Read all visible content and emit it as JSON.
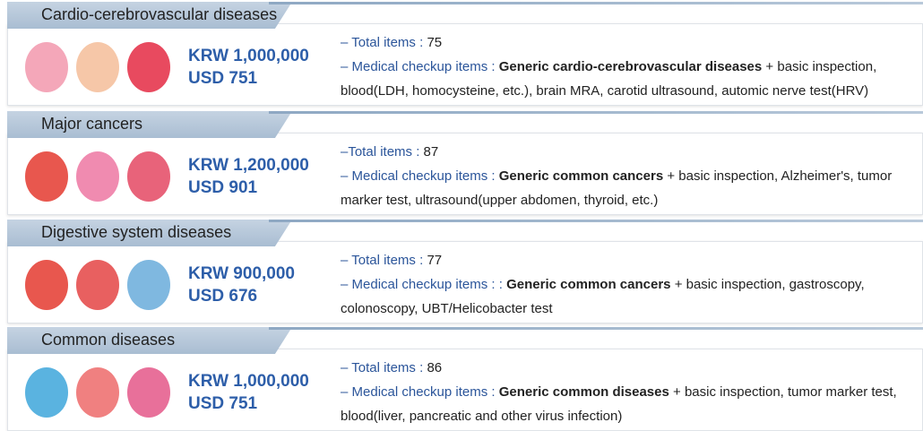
{
  "sections": [
    {
      "title": "Cardio-cerebrovascular diseases",
      "price_krw": "KRW 1,000,000",
      "price_usd": "USD 751",
      "total_label": "– Total items :",
      "total_value": "75",
      "items_label": "– Medical checkup items :",
      "items_bold": "Generic cardio-cerebrovascular diseases",
      "items_rest": "+ basic inspection, blood(LDH, homocysteine, etc.), brain MRA, carotid ultrasound, automic nerve test(HRV)"
    },
    {
      "title": "Major cancers",
      "price_krw": "KRW 1,200,000",
      "price_usd": "USD 901",
      "total_label": "–Total items :",
      "total_value": "87",
      "items_label": "– Medical checkup items :",
      "items_bold": "Generic common cancers",
      "items_rest": "+ basic inspection, Alzheimer's, tumor marker test, ultrasound(upper abdomen, thyroid, etc.)"
    },
    {
      "title": "Digestive system diseases",
      "price_krw": "KRW 900,000",
      "price_usd": "USD 676",
      "total_label": "– Total items :",
      "total_value": "77",
      "items_label": "– Medical checkup items : :",
      "items_bold": "Generic common cancers",
      "items_rest": "+ basic inspection, gastroscopy, colonoscopy, UBT/Helicobacter test"
    },
    {
      "title": "Common diseases",
      "price_krw": "KRW 1,000,000",
      "price_usd": "USD 751",
      "total_label": "– Total items :",
      "total_value": "86",
      "items_label": "– Medical checkup items :",
      "items_bold": "Generic common diseases",
      "items_rest": "+ basic inspection, tumor marker test, blood(liver, pancreatic and other virus infection)"
    }
  ]
}
